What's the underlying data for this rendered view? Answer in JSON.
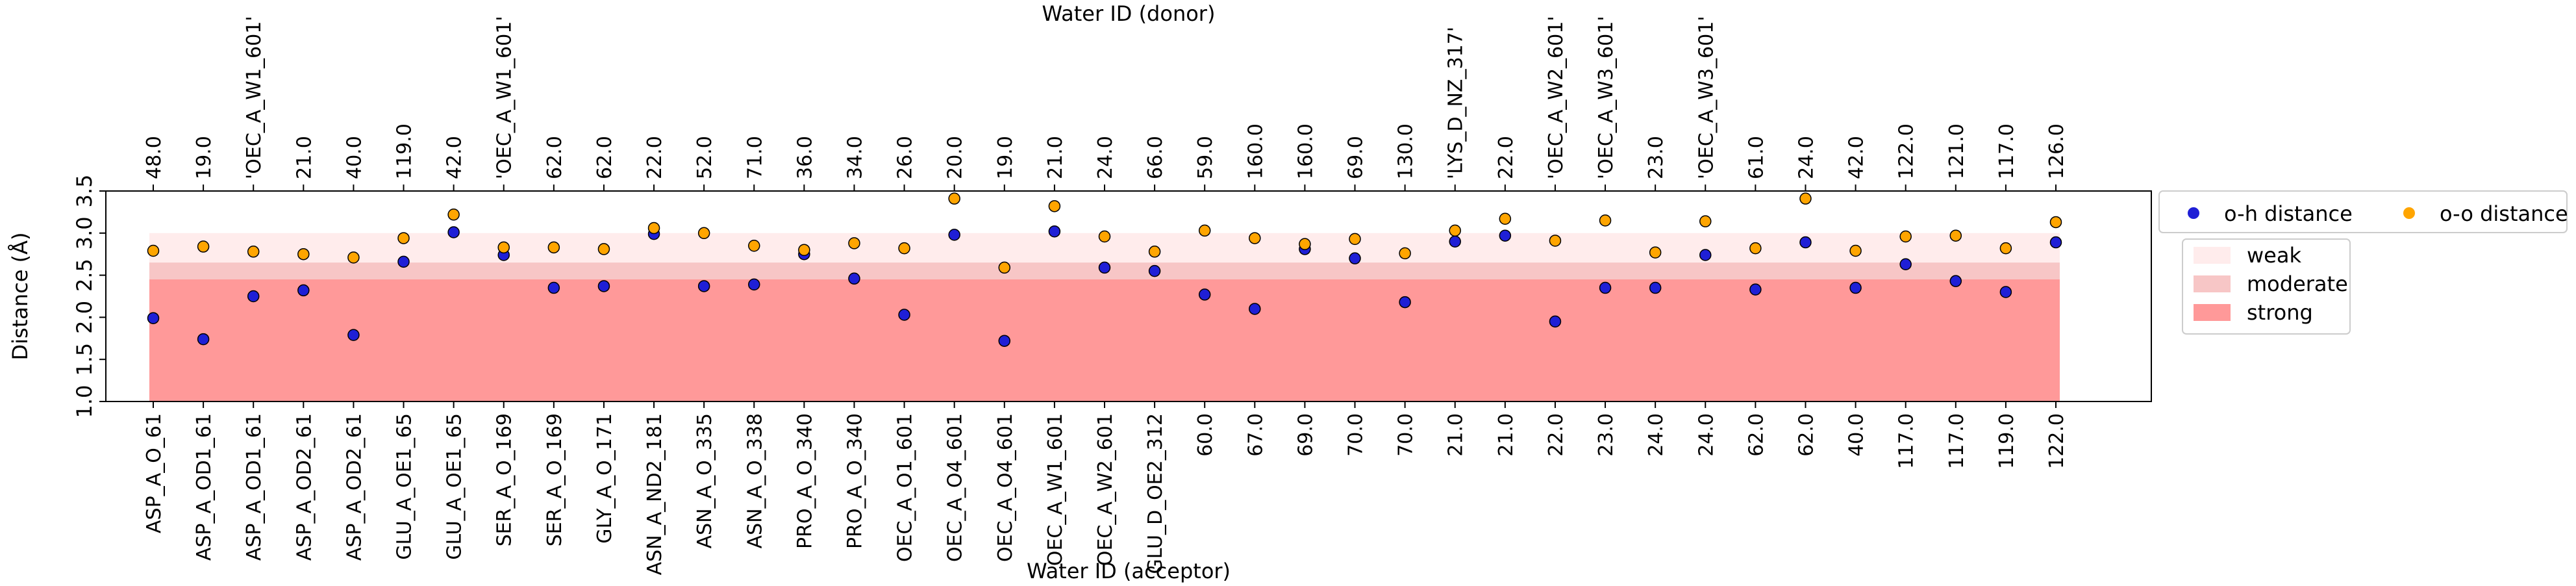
{
  "chart_data": {
    "type": "scatter",
    "title": "",
    "xlabel": "Water ID (acceptor)",
    "x2label": "Water ID (donor)",
    "ylabel": "Distance (Å)",
    "ylim": [
      1.0,
      3.5
    ],
    "yticks": [
      "1.0",
      "1.5",
      "2.0",
      "2.5",
      "3.0",
      "3.5"
    ],
    "acceptor_labels": [
      "ASP_A_O_61",
      "ASP_A_OD1_61",
      "ASP_A_OD1_61",
      "ASP_A_OD2_61",
      "ASP_A_OD2_61",
      "GLU_A_OE1_65",
      "GLU_A_OE1_65",
      "SER_A_O_169",
      "SER_A_O_169",
      "GLY_A_O_171",
      "ASN_A_ND2_181",
      "ASN_A_O_335",
      "ASN_A_O_338",
      "PRO_A_O_340",
      "PRO_A_O_340",
      "OEC_A_O1_601",
      "OEC_A_O4_601",
      "OEC_A_O4_601",
      "OEC_A_W1_601",
      "OEC_A_W2_601",
      "GLU_D_OE2_312",
      "60.0",
      "67.0",
      "69.0",
      "70.0",
      "70.0",
      "21.0",
      "21.0",
      "22.0",
      "23.0",
      "24.0",
      "24.0",
      "62.0",
      "62.0",
      "40.0",
      "117.0",
      "117.0",
      "119.0",
      "122.0"
    ],
    "donor_labels": [
      "48.0",
      "19.0",
      "'OEC_A_W1_601'",
      "21.0",
      "40.0",
      "119.0",
      "42.0",
      "'OEC_A_W1_601'",
      "62.0",
      "62.0",
      "22.0",
      "52.0",
      "71.0",
      "36.0",
      "34.0",
      "26.0",
      "20.0",
      "19.0",
      "21.0",
      "24.0",
      "66.0",
      "59.0",
      "160.0",
      "160.0",
      "69.0",
      "130.0",
      "'LYS_D_NZ_317'",
      "22.0",
      "'OEC_A_W2_601'",
      "'OEC_A_W3_601'",
      "23.0",
      "'OEC_A_W3_601'",
      "61.0",
      "24.0",
      "42.0",
      "122.0",
      "121.0",
      "117.0",
      "126.0"
    ],
    "series": [
      {
        "name": "o-h distance",
        "color": "#1f1fd6",
        "values": [
          1.99,
          1.74,
          2.25,
          2.32,
          1.79,
          2.66,
          3.01,
          2.74,
          2.35,
          2.37,
          2.99,
          2.37,
          2.39,
          2.75,
          2.46,
          2.03,
          2.98,
          1.72,
          3.02,
          2.59,
          2.55,
          2.27,
          2.1,
          2.81,
          2.7,
          2.18,
          2.9,
          2.97,
          1.95,
          2.35,
          2.35,
          2.74,
          2.33,
          2.89,
          2.35,
          2.63,
          2.43,
          2.3,
          2.89
        ]
      },
      {
        "name": "o-o distance",
        "color": "#ffa500",
        "values": [
          2.79,
          2.84,
          2.78,
          2.75,
          2.71,
          2.94,
          3.22,
          2.83,
          2.83,
          2.81,
          3.06,
          3.0,
          2.85,
          2.8,
          2.88,
          2.82,
          3.41,
          2.59,
          3.32,
          2.96,
          2.78,
          3.03,
          2.94,
          2.87,
          2.93,
          2.76,
          3.03,
          3.17,
          2.91,
          3.15,
          2.77,
          3.14,
          2.82,
          3.41,
          2.79,
          2.96,
          2.97,
          2.82,
          3.13
        ]
      }
    ],
    "bands": [
      {
        "name": "weak",
        "from": 1.0,
        "to": 3.0,
        "color": "#ffecec"
      },
      {
        "name": "moderate",
        "from": 1.0,
        "to": 2.65,
        "color": "#f7c6c6"
      },
      {
        "name": "strong",
        "from": 1.0,
        "to": 2.45,
        "color": "#ff9999"
      }
    ],
    "grid": false,
    "legend_position": "right"
  }
}
